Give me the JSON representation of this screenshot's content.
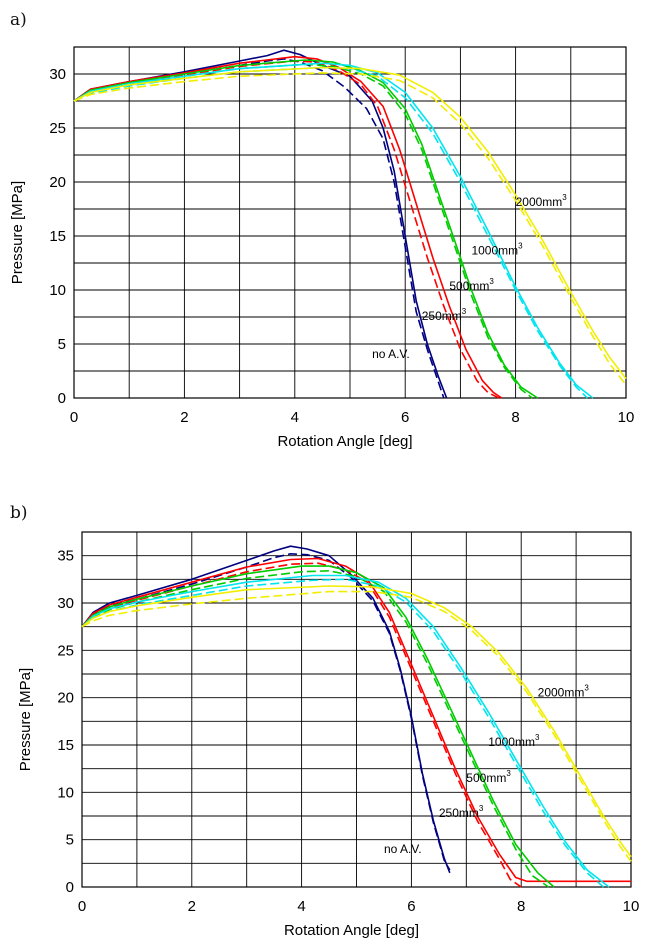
{
  "panels": [
    {
      "label": "a)"
    },
    {
      "label": "b)"
    }
  ],
  "colors": {
    "no_av": "#000080",
    "v250": "#ff0000",
    "v500": "#00cc00",
    "v1000": "#00e5ee",
    "v2000": "#f2ee00",
    "grid": "#000000"
  },
  "chart_data": [
    {
      "type": "line",
      "panel": "a)",
      "xlabel": "Rotation Angle [deg]",
      "ylabel": "Pressure [MPa]",
      "xlim": [
        0,
        10
      ],
      "ylim": [
        0,
        32.5
      ],
      "xticks": [
        0,
        2,
        4,
        6,
        8,
        10
      ],
      "yticks": [
        0,
        5,
        10,
        15,
        20,
        25,
        30
      ],
      "grid": true,
      "minor_y_grid": true,
      "annotations": [
        {
          "text": "2000mm",
          "sup": "3",
          "x": 8.0,
          "y": 17.8
        },
        {
          "text": "1000mm",
          "sup": "3",
          "x": 7.2,
          "y": 13.3
        },
        {
          "text": "500mm",
          "sup": "3",
          "x": 6.8,
          "y": 10.0
        },
        {
          "text": "250mm",
          "sup": "3",
          "x": 6.3,
          "y": 7.2
        },
        {
          "text": "no A.V.",
          "x": 5.4,
          "y": 3.7
        }
      ],
      "series": [
        {
          "color_key": "no_av",
          "style": "solid",
          "x": [
            0,
            0.3,
            1,
            2,
            3,
            3.5,
            3.8,
            4.1,
            4.5,
            5.0,
            5.4,
            5.6,
            5.8,
            6.0,
            6.2,
            6.4,
            6.6,
            6.75
          ],
          "y": [
            27.5,
            28.6,
            29.3,
            30.2,
            31.2,
            31.7,
            32.2,
            31.8,
            30.8,
            29.8,
            27.5,
            25,
            21,
            15,
            9,
            5,
            2,
            0
          ]
        },
        {
          "color_key": "no_av",
          "style": "dashed",
          "x": [
            0,
            0.3,
            1,
            2,
            3,
            3.5,
            3.8,
            4.1,
            4.5,
            4.9,
            5.3,
            5.6,
            5.8,
            6.0,
            6.2,
            6.4,
            6.6,
            6.7
          ],
          "y": [
            27.5,
            28.4,
            29.1,
            30.0,
            30.8,
            31.2,
            31.4,
            31.1,
            30.3,
            28.8,
            26.8,
            24,
            20,
            14,
            8,
            4.5,
            1.5,
            0
          ]
        },
        {
          "color_key": "v250",
          "style": "solid",
          "x": [
            0,
            0.3,
            1,
            2,
            3,
            4.0,
            4.4,
            4.8,
            5.2,
            5.6,
            5.9,
            6.2,
            6.5,
            6.8,
            7.1,
            7.4,
            7.6,
            7.75
          ],
          "y": [
            27.5,
            28.6,
            29.3,
            30.1,
            31.0,
            31.6,
            31.4,
            30.6,
            29.3,
            27,
            23,
            18,
            13,
            8.5,
            4.5,
            1.6,
            0.5,
            0
          ]
        },
        {
          "color_key": "v250",
          "style": "dashed",
          "x": [
            0,
            0.3,
            1,
            2,
            3,
            4.0,
            4.4,
            4.8,
            5.2,
            5.5,
            5.8,
            6.1,
            6.4,
            6.7,
            7.0,
            7.3,
            7.5,
            7.7
          ],
          "y": [
            27.5,
            28.4,
            29.1,
            29.9,
            30.7,
            31.2,
            31.1,
            30.3,
            29.0,
            27,
            23,
            18,
            13,
            8.5,
            4.5,
            1.6,
            0.5,
            0
          ]
        },
        {
          "color_key": "v500",
          "style": "solid",
          "x": [
            0,
            0.3,
            1,
            2,
            3,
            4.2,
            4.7,
            5.2,
            5.6,
            6.0,
            6.3,
            6.6,
            6.9,
            7.2,
            7.5,
            7.8,
            8.1,
            8.4
          ],
          "y": [
            27.5,
            28.5,
            29.2,
            30.0,
            30.8,
            31.3,
            31.1,
            30.3,
            29.2,
            26.8,
            23.5,
            19,
            14.5,
            10,
            6,
            3,
            1,
            0
          ]
        },
        {
          "color_key": "v500",
          "style": "dashed",
          "x": [
            0,
            0.3,
            1,
            2,
            3,
            4.2,
            4.7,
            5.2,
            5.6,
            6.0,
            6.3,
            6.6,
            6.9,
            7.2,
            7.5,
            7.8,
            8.1,
            8.3
          ],
          "y": [
            27.5,
            28.3,
            29.0,
            29.8,
            30.5,
            30.9,
            30.7,
            30.0,
            28.9,
            26.3,
            23,
            18.5,
            14,
            9.5,
            5.6,
            2.8,
            0.8,
            0
          ]
        },
        {
          "color_key": "v1000",
          "style": "solid",
          "x": [
            0,
            0.3,
            1,
            2,
            3,
            4.5,
            5.0,
            5.5,
            6.0,
            6.5,
            7.0,
            7.5,
            8.0,
            8.4,
            8.8,
            9.1,
            9.4
          ],
          "y": [
            27.5,
            28.4,
            29.1,
            29.8,
            30.5,
            31.0,
            30.8,
            30.1,
            28.3,
            25,
            20.5,
            15.5,
            10.3,
            6.5,
            3.2,
            1.2,
            0
          ]
        },
        {
          "color_key": "v1000",
          "style": "dashed",
          "x": [
            0,
            0.3,
            1,
            2,
            3,
            4.5,
            5.0,
            5.5,
            6.0,
            6.5,
            7.0,
            7.5,
            8.0,
            8.4,
            8.8,
            9.1,
            9.3
          ],
          "y": [
            27.5,
            28.2,
            28.9,
            29.6,
            30.2,
            30.6,
            30.5,
            29.8,
            27.8,
            24.5,
            20,
            15,
            10,
            6.2,
            3,
            1,
            0
          ]
        },
        {
          "color_key": "v2000",
          "style": "solid",
          "x": [
            0,
            0.3,
            1,
            2,
            3,
            4.5,
            5.2,
            5.9,
            6.5,
            7.0,
            7.5,
            8.0,
            8.5,
            9.0,
            9.4,
            9.7,
            10
          ],
          "y": [
            27.5,
            28.3,
            29.0,
            29.6,
            30.2,
            30.6,
            30.5,
            29.9,
            28.3,
            26,
            22.8,
            18.8,
            14.5,
            9.8,
            6.2,
            3.8,
            1.8
          ]
        },
        {
          "color_key": "v2000",
          "style": "dashed",
          "x": [
            0,
            0.3,
            1,
            2,
            3,
            4.5,
            5.2,
            5.9,
            6.5,
            7.0,
            7.5,
            8.0,
            8.5,
            9.0,
            9.4,
            9.7,
            10
          ],
          "y": [
            27.5,
            28.1,
            28.7,
            29.3,
            29.8,
            30.1,
            30.0,
            29.4,
            27.8,
            25.4,
            22.2,
            18.3,
            14,
            9.3,
            5.7,
            3.2,
            1.2
          ]
        }
      ]
    },
    {
      "type": "line",
      "panel": "b)",
      "xlabel": "Rotation Angle [deg]",
      "ylabel": "Pressure [MPa]",
      "xlim": [
        0,
        10
      ],
      "ylim": [
        0,
        37.5
      ],
      "xticks": [
        0,
        2,
        4,
        6,
        8,
        10
      ],
      "yticks": [
        0,
        5,
        10,
        15,
        20,
        25,
        30,
        35
      ],
      "grid": true,
      "minor_y_grid": true,
      "annotations": [
        {
          "text": "2000mm",
          "sup": "3",
          "x": 8.3,
          "y": 20.1
        },
        {
          "text": "1000mm",
          "sup": "3",
          "x": 7.4,
          "y": 14.9
        },
        {
          "text": "500mm",
          "sup": "3",
          "x": 7.0,
          "y": 11.1
        },
        {
          "text": "250mm",
          "sup": "3",
          "x": 6.5,
          "y": 7.4
        },
        {
          "text": "no A.V.",
          "x": 5.5,
          "y": 3.6
        }
      ],
      "series": [
        {
          "color_key": "no_av",
          "style": "solid",
          "x": [
            0,
            0.2,
            0.5,
            1,
            2,
            3,
            3.5,
            3.8,
            4.1,
            4.5,
            4.9,
            5.3,
            5.6,
            5.8,
            6.0,
            6.2,
            6.4,
            6.6,
            6.7
          ],
          "y": [
            27.5,
            29,
            30,
            30.8,
            32.5,
            34.5,
            35.5,
            36,
            35.7,
            35,
            33,
            30.5,
            27,
            23,
            18,
            12,
            7,
            3,
            1.5
          ]
        },
        {
          "color_key": "no_av",
          "style": "dashed",
          "x": [
            0,
            0.2,
            0.5,
            1,
            2,
            3,
            3.5,
            3.8,
            4.1,
            4.5,
            4.9,
            5.3,
            5.6,
            5.8,
            6.0,
            6.2,
            6.4,
            6.6,
            6.7
          ],
          "y": [
            27.5,
            28.8,
            29.7,
            30.4,
            32,
            33.8,
            34.8,
            35.2,
            35.1,
            34.5,
            32.7,
            30.2,
            26.8,
            22.8,
            17.8,
            11.8,
            6.8,
            2.8,
            1.8
          ]
        },
        {
          "color_key": "v250",
          "style": "solid",
          "x": [
            0,
            0.2,
            0.5,
            1,
            2,
            3,
            3.8,
            4.3,
            4.8,
            5.2,
            5.6,
            6.0,
            6.4,
            6.8,
            7.2,
            7.6,
            7.9,
            8.1,
            8.5,
            10
          ],
          "y": [
            27.5,
            28.9,
            29.8,
            30.6,
            32.2,
            33.8,
            34.6,
            34.7,
            33.9,
            32.5,
            29,
            23.5,
            18,
            12.5,
            7.5,
            3.5,
            1,
            0.6,
            0.6,
            0.6
          ]
        },
        {
          "color_key": "v250",
          "style": "dashed",
          "x": [
            0,
            0.2,
            0.5,
            1,
            2,
            3,
            3.8,
            4.3,
            4.8,
            5.2,
            5.6,
            6.0,
            6.4,
            6.8,
            7.2,
            7.6,
            7.8,
            8.0
          ],
          "y": [
            27.5,
            28.7,
            29.5,
            30.3,
            31.8,
            33.3,
            34.1,
            34.2,
            33.5,
            32.2,
            28.5,
            23,
            17.5,
            12,
            7,
            3,
            0.8,
            0
          ]
        },
        {
          "color_key": "v500",
          "style": "solid",
          "x": [
            0,
            0.2,
            0.5,
            1,
            2,
            3,
            4.0,
            4.5,
            5.0,
            5.5,
            5.9,
            6.3,
            6.7,
            7.1,
            7.5,
            7.9,
            8.3,
            8.6
          ],
          "y": [
            27.5,
            28.7,
            29.6,
            30.4,
            31.8,
            33.1,
            33.9,
            33.9,
            33.2,
            31.6,
            28.5,
            24,
            19,
            14,
            9,
            4.5,
            1.5,
            0
          ]
        },
        {
          "color_key": "v500",
          "style": "dashed",
          "x": [
            0,
            0.2,
            0.5,
            1,
            2,
            3,
            4.0,
            4.5,
            5.0,
            5.5,
            5.9,
            6.3,
            6.7,
            7.1,
            7.5,
            7.9,
            8.2,
            8.5
          ],
          "y": [
            27.5,
            28.5,
            29.3,
            30.1,
            31.4,
            32.6,
            33.3,
            33.4,
            32.8,
            31.2,
            28,
            23.5,
            18.5,
            13.5,
            8.5,
            4,
            1.2,
            0
          ]
        },
        {
          "color_key": "v1000",
          "style": "solid",
          "x": [
            0,
            0.2,
            0.5,
            1,
            2,
            3,
            4.2,
            4.8,
            5.4,
            5.9,
            6.4,
            6.9,
            7.4,
            7.9,
            8.4,
            8.8,
            9.2,
            9.6
          ],
          "y": [
            27.5,
            28.6,
            29.4,
            30.1,
            31.2,
            32.2,
            32.9,
            32.9,
            32.2,
            30.5,
            27.5,
            23.2,
            18.5,
            13.5,
            8.5,
            4.8,
            1.8,
            0
          ]
        },
        {
          "color_key": "v1000",
          "style": "dashed",
          "x": [
            0,
            0.2,
            0.5,
            1,
            2,
            3,
            4.2,
            4.8,
            5.4,
            5.9,
            6.4,
            6.9,
            7.4,
            7.9,
            8.4,
            8.8,
            9.2,
            9.5
          ],
          "y": [
            27.5,
            28.4,
            29.1,
            29.8,
            30.8,
            31.8,
            32.4,
            32.5,
            31.8,
            30.1,
            27,
            22.7,
            18,
            13,
            8,
            4.4,
            1.5,
            0
          ]
        },
        {
          "color_key": "v2000",
          "style": "solid",
          "x": [
            0,
            0.2,
            0.5,
            1,
            2,
            3,
            4.5,
            5.3,
            6.0,
            6.6,
            7.1,
            7.6,
            8.1,
            8.6,
            9.1,
            9.5,
            9.8,
            10
          ],
          "y": [
            27.5,
            28.4,
            29.1,
            29.7,
            30.6,
            31.4,
            31.8,
            31.7,
            31.0,
            29.5,
            27.5,
            24.7,
            21,
            16.5,
            11.5,
            7.5,
            4.8,
            3.2
          ]
        },
        {
          "color_key": "v2000",
          "style": "dashed",
          "x": [
            0,
            0.2,
            0.5,
            1,
            2,
            3,
            4.5,
            5.3,
            6.0,
            6.6,
            7.1,
            7.6,
            8.1,
            8.6,
            9.1,
            9.5,
            9.8,
            10
          ],
          "y": [
            27.5,
            28.1,
            28.7,
            29.2,
            29.9,
            30.5,
            31.2,
            31.2,
            30.6,
            29.1,
            27.1,
            24.3,
            20.6,
            16.1,
            11.1,
            7.1,
            4.3,
            2.7
          ]
        }
      ]
    }
  ]
}
